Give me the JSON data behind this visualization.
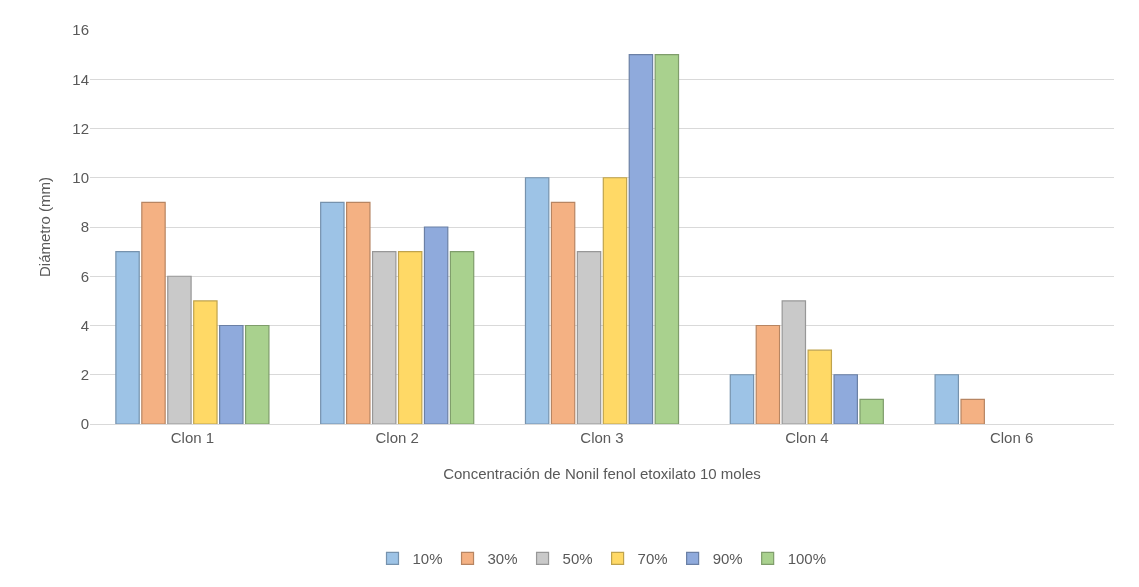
{
  "chart_data": {
    "type": "bar",
    "xlabel": "Concentración de Nonil fenol etoxilato 10 moles",
    "ylabel": "Diámetro (mm)",
    "categories": [
      "Clon 1",
      "Clon 2",
      "Clon 3",
      "Clon 4",
      "Clon 6"
    ],
    "series": [
      {
        "name": "10%",
        "color": "#9dc3e6",
        "values": [
          7,
          9,
          10,
          2,
          2
        ]
      },
      {
        "name": "30%",
        "color": "#f4b183",
        "values": [
          9,
          9,
          9,
          4,
          1
        ]
      },
      {
        "name": "50%",
        "color": "#c9c9c9",
        "values": [
          6,
          7,
          7,
          5,
          null
        ]
      },
      {
        "name": "70%",
        "color": "#ffd966",
        "values": [
          5,
          7,
          10,
          3,
          null
        ]
      },
      {
        "name": "90%",
        "color": "#8faadc",
        "values": [
          4,
          8,
          15,
          2,
          null
        ]
      },
      {
        "name": "100%",
        "color": "#a9d18e",
        "values": [
          4,
          7,
          15,
          1,
          null
        ]
      }
    ],
    "ylim": [
      0,
      16
    ],
    "yticks": [
      0,
      2,
      4,
      6,
      8,
      10,
      12,
      14,
      16
    ],
    "grid": "y",
    "legend": "bottom"
  }
}
